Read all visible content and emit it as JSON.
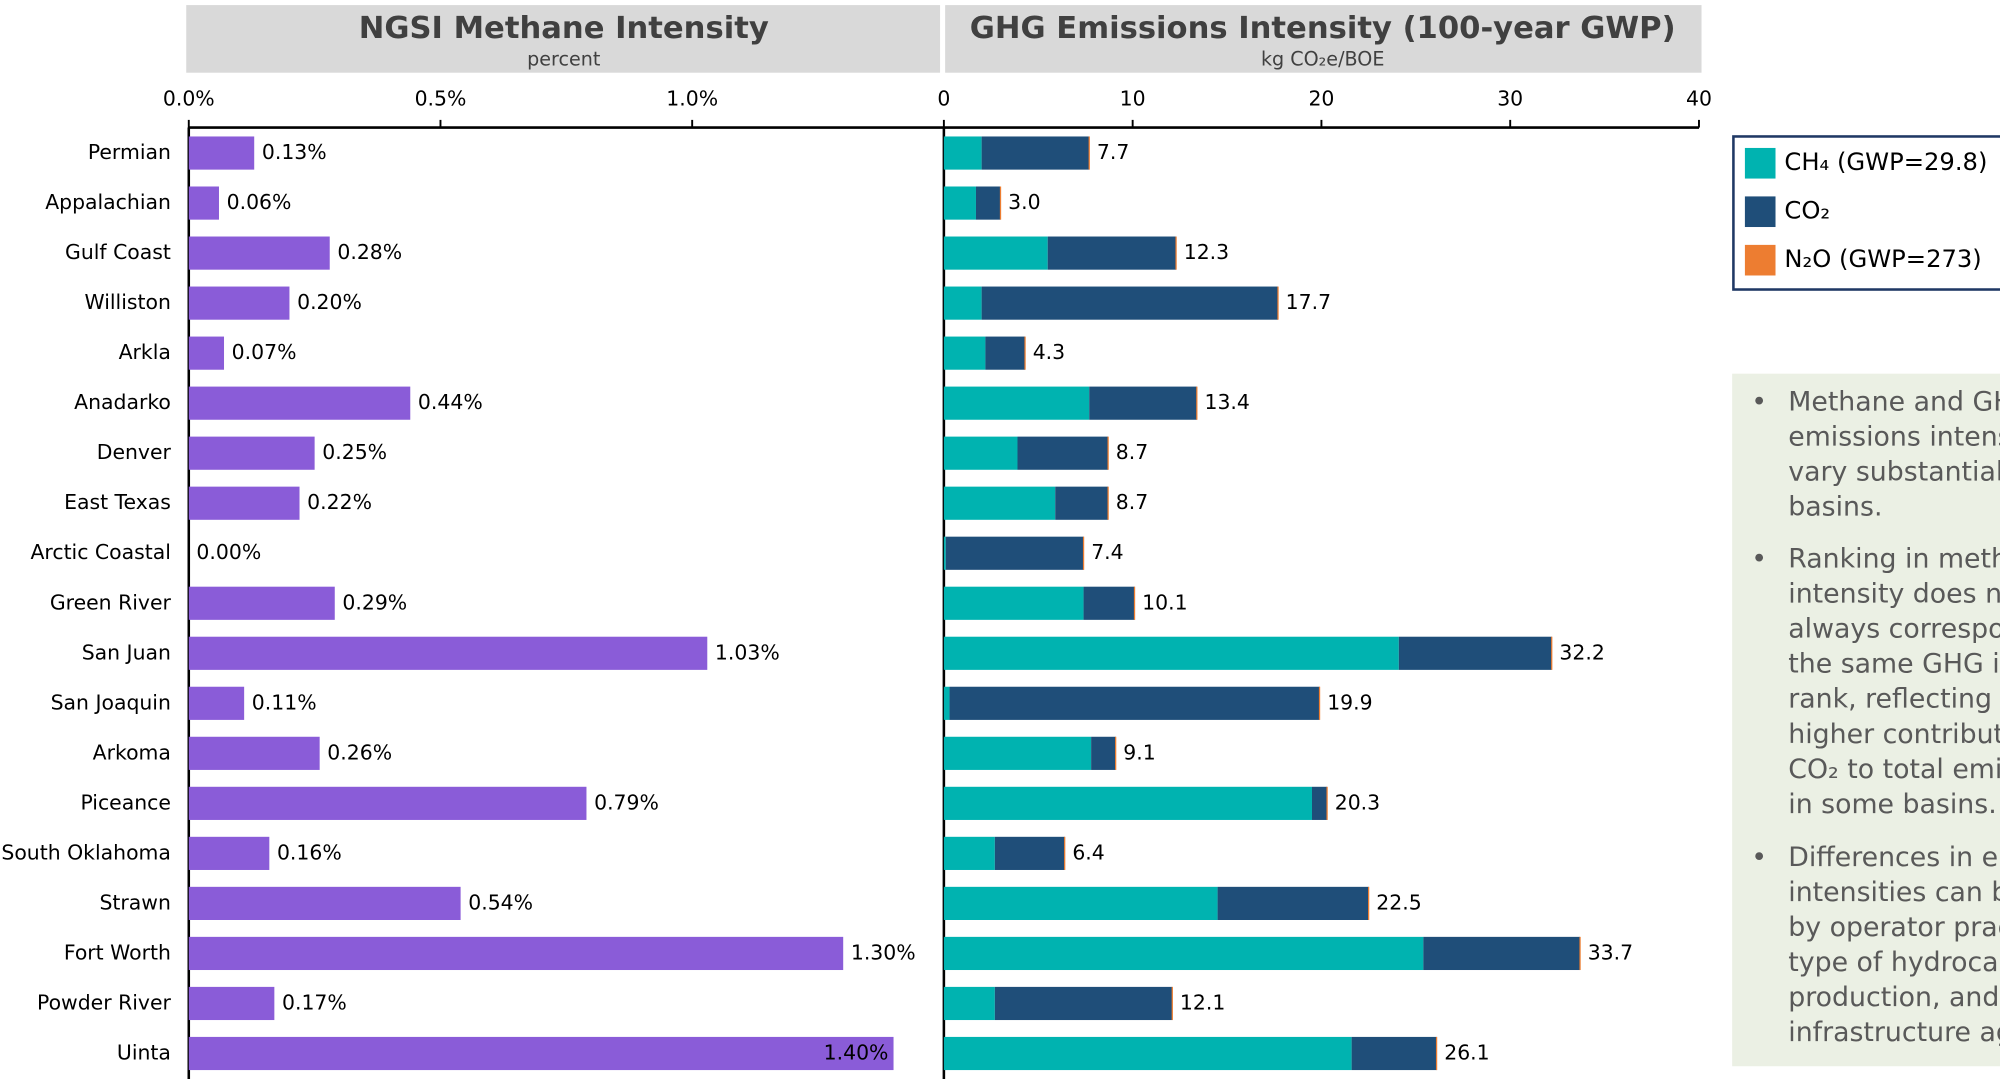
{
  "chart_data": [
    {
      "type": "bar",
      "orientation": "horizontal",
      "title": "NGSI Methane Intensity",
      "subtitle": "percent",
      "categories": [
        "Permian",
        "Appalachian",
        "Gulf Coast",
        "Williston",
        "Arkla",
        "Anadarko",
        "Denver",
        "East Texas",
        "Arctic Coastal",
        "Green River",
        "San Juan",
        "San Joaquin",
        "Arkoma",
        "Piceance",
        "South Oklahoma",
        "Strawn",
        "Fort Worth",
        "Powder River",
        "Uinta"
      ],
      "values": [
        0.13,
        0.06,
        0.28,
        0.2,
        0.07,
        0.44,
        0.25,
        0.22,
        0.0,
        0.29,
        1.03,
        0.11,
        0.26,
        0.79,
        0.16,
        0.54,
        1.3,
        0.17,
        1.4
      ],
      "value_labels": [
        "0.13%",
        "0.06%",
        "0.28%",
        "0.20%",
        "0.07%",
        "0.44%",
        "0.25%",
        "0.22%",
        "0.00%",
        "0.29%",
        "1.03%",
        "0.11%",
        "0.26%",
        "0.79%",
        "0.16%",
        "0.54%",
        "1.30%",
        "0.17%",
        "1.40%"
      ],
      "color": "#8a5cd8",
      "xlim": [
        0,
        1.5
      ],
      "xticks": [
        {
          "value": 0,
          "label": "0.0%"
        },
        {
          "value": 0.5,
          "label": "0.5%"
        },
        {
          "value": 1.0,
          "label": "1.0%"
        }
      ]
    },
    {
      "type": "stacked_bar",
      "orientation": "horizontal",
      "title": "GHG Emissions Intensity (100-year GWP)",
      "subtitle": "kg CO₂e/BOE",
      "series": [
        {
          "name": "CH₄ (GWP=29.8)",
          "color": "#00b3b0",
          "values": [
            2.0,
            1.7,
            5.5,
            2.0,
            2.2,
            7.7,
            3.9,
            5.9,
            0.1,
            7.4,
            24.1,
            0.3,
            7.8,
            19.5,
            2.7,
            14.5,
            25.4,
            2.7,
            21.6
          ]
        },
        {
          "name": "CO₂",
          "color": "#1f4e79",
          "values": [
            5.7,
            1.3,
            6.8,
            15.7,
            2.1,
            5.7,
            4.8,
            2.8,
            7.3,
            2.7,
            8.1,
            19.6,
            1.3,
            0.8,
            3.7,
            8.0,
            8.3,
            9.4,
            4.5
          ]
        },
        {
          "name": "N₂O (GWP=273)",
          "color": "#ed7d31",
          "values": [
            0.0,
            0.0,
            0.0,
            0.0,
            0.0,
            0.0,
            0.0,
            0.0,
            0.0,
            0.0,
            0.0,
            0.0,
            0.0,
            0.0,
            0.0,
            0.0,
            0.0,
            0.0,
            0.0
          ]
        }
      ],
      "totals": [
        7.7,
        3.0,
        12.3,
        17.7,
        4.3,
        13.4,
        8.7,
        8.7,
        7.4,
        10.1,
        32.2,
        19.9,
        9.1,
        20.3,
        6.4,
        22.5,
        33.7,
        12.1,
        26.1
      ],
      "value_labels": [
        "7.7",
        "3.0",
        "12.3",
        "17.7",
        "4.3",
        "13.4",
        "8.7",
        "8.7",
        "7.4",
        "10.1",
        "32.2",
        "19.9",
        "9.1",
        "20.3",
        "6.4",
        "22.5",
        "33.7",
        "12.1",
        "26.1"
      ],
      "xlim": [
        0,
        40
      ],
      "xticks": [
        0,
        10,
        20,
        30,
        40
      ],
      "legend": "right"
    }
  ],
  "notes": {
    "bullets": [
      {
        "lines": [
          "Methane and GH",
          "emissions intens",
          "vary substantially",
          "basins."
        ]
      },
      {
        "lines": [
          "Ranking in meth",
          "intensity does no",
          "always correspor",
          "the same GHG in",
          "rank, reflecting t",
          "higher contribut",
          "CO₂ to total emis",
          "in some basins."
        ]
      },
      {
        "lines": [
          "Differences in en",
          "intensities can be",
          "by operator prac",
          "type of hydrocar",
          "production, and",
          "infrastructure ag"
        ]
      }
    ]
  }
}
